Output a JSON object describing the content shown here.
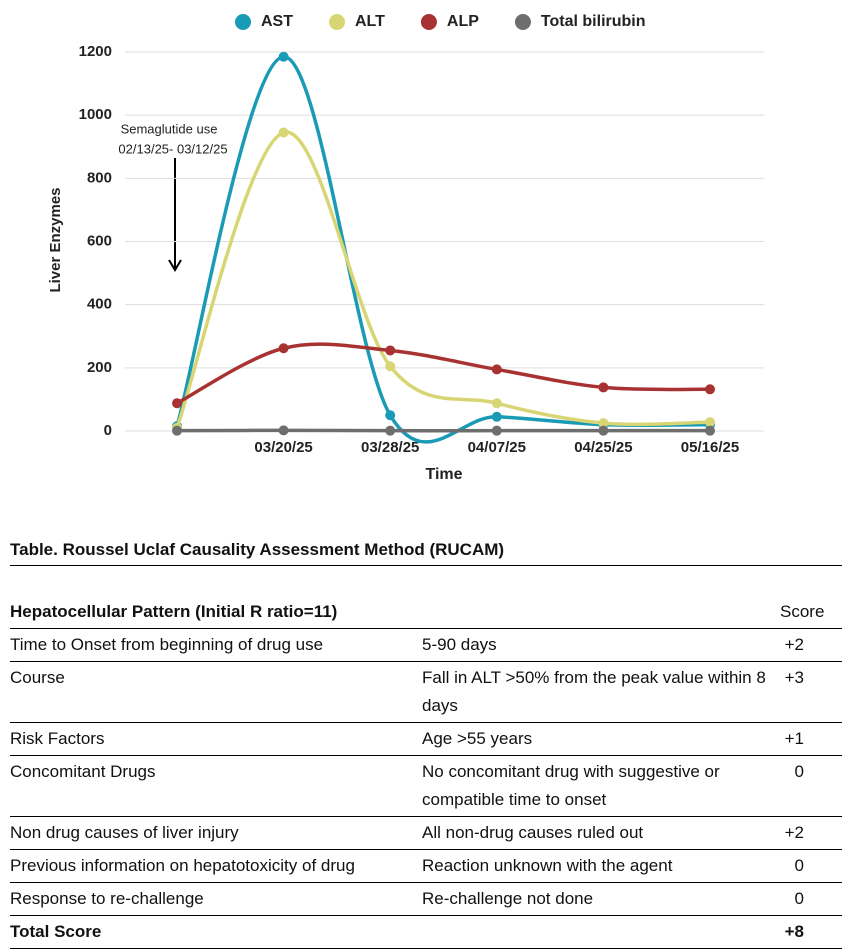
{
  "chart_data": {
    "type": "line",
    "categories": [
      null,
      "03/20/25",
      "03/28/25",
      "04/07/25",
      "04/25/25",
      "05/16/25"
    ],
    "series": [
      {
        "name": "AST",
        "color": "#1a9bb5",
        "values": [
          15,
          1185,
          50,
          45,
          20,
          20
        ]
      },
      {
        "name": "ALT",
        "color": "#d8d674",
        "values": [
          10,
          945,
          205,
          88,
          25,
          28
        ]
      },
      {
        "name": "ALP",
        "color": "#a83232",
        "values": [
          88,
          262,
          255,
          195,
          138,
          132
        ]
      },
      {
        "name": "Total bilirubin",
        "color": "#6e6e6e",
        "values": [
          1,
          2,
          1,
          1,
          1,
          1
        ]
      }
    ],
    "ylim": [
      0,
      1200
    ],
    "yticks": [
      0,
      200,
      400,
      600,
      800,
      1000,
      1200
    ],
    "grid": true,
    "ylabel": "Liver Enzymes",
    "xlabel": "Time",
    "legend": "top",
    "annotation": [
      "Semaglutide use",
      "02/13/25- 03/12/25"
    ]
  },
  "table": {
    "title": "Table. Roussel Uclaf Causality Assessment Method (RUCAM)",
    "header": [
      "Hepatocellular Pattern (Initial R ratio=11)",
      "",
      "Score"
    ],
    "rows": [
      [
        "Time to Onset from beginning of drug use",
        "5-90 days",
        "+2"
      ],
      [
        "Course",
        "Fall in ALT >50% from the peak value within 8 days",
        "+3"
      ],
      [
        "Risk Factors",
        "Age >55 years",
        "+1"
      ],
      [
        "Concomitant Drugs",
        "No concomitant drug with suggestive or compatible time to onset",
        "0"
      ],
      [
        "Non drug causes of liver injury",
        "All non-drug causes ruled out",
        "+2"
      ],
      [
        "Previous information on hepatotoxicity of drug",
        "Reaction unknown with the agent",
        "0"
      ],
      [
        "Response to re-challenge",
        "Re-challenge not done",
        "0"
      ]
    ],
    "total": [
      "Total Score",
      "+8"
    ]
  }
}
